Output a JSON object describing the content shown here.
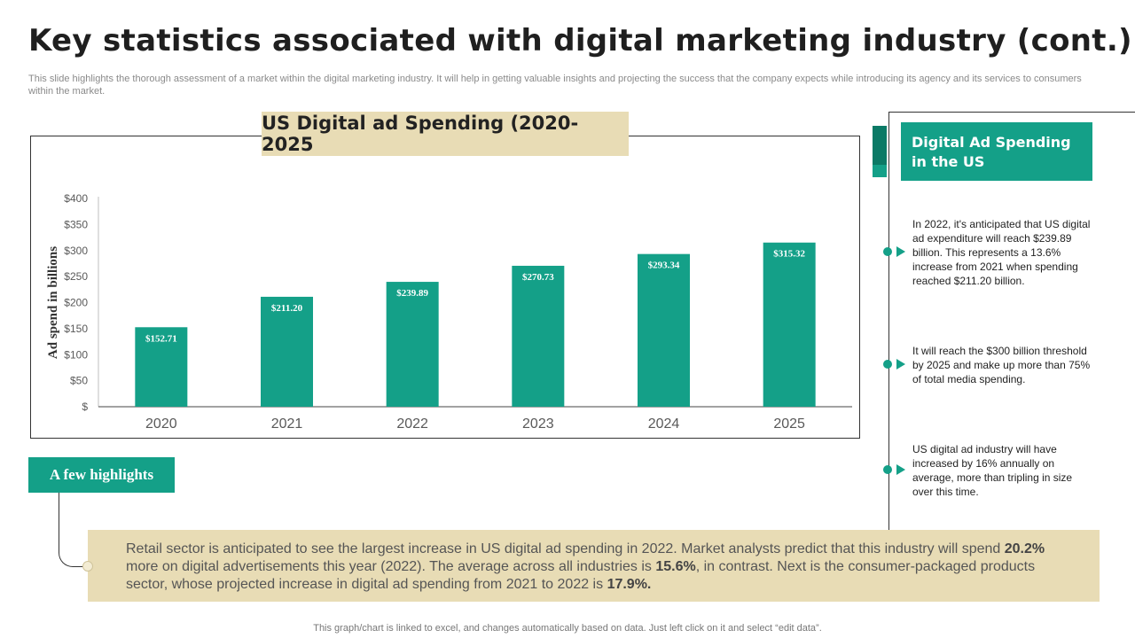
{
  "slide": {
    "title": "Key statistics associated with digital marketing industry (cont.)",
    "subtitle": "This slide highlights the thorough assessment of a market within the digital marketing industry. It will help in getting valuable insights and projecting the success that the company expects while introducing its agency and its services to consumers within the market.",
    "footer": "This graph/chart is linked to excel, and changes automatically based on data. Just left click on it and select “edit data”."
  },
  "chart_data": {
    "type": "bar",
    "title": "US Digital ad Spending (2020-2025",
    "categories": [
      "2020",
      "2021",
      "2022",
      "2023",
      "2024",
      "2025"
    ],
    "values": [
      152.71,
      211.2,
      239.89,
      270.73,
      293.34,
      315.32
    ],
    "data_labels": [
      "$152.71",
      "$211.20",
      "$239.89",
      "$270.73",
      "$293.34",
      "$315.32"
    ],
    "ylabel": "Ad spend in billions",
    "xlabel": "",
    "ylim": [
      0,
      400
    ],
    "yticks": [
      0,
      50,
      100,
      150,
      200,
      250,
      300,
      350,
      400
    ],
    "ytick_labels": [
      "$",
      "$50",
      "$100",
      "$150",
      "$200",
      "$250",
      "$300",
      "$350",
      "$400"
    ],
    "bar_color": "#14a088",
    "grid": false
  },
  "right_panel": {
    "header": "Digital Ad Spending in the US",
    "items": [
      {
        "text": "In 2022, it's anticipated that US digital ad expenditure will reach $239.89 billion. This represents a 13.6% increase from 2021 when spending reached $211.20 billion."
      },
      {
        "text": "It will reach the $300 billion threshold by 2025 and make up more than 75% of total media spending."
      },
      {
        "text": "US digital ad industry will have increased by 16% annually on average,  more than tripling in size over this time."
      }
    ]
  },
  "highlights": {
    "label": "A few highlights",
    "text_1": "Retail sector is anticipated to see the largest increase in US digital ad spending in 2022. Market analysts predict that this industry will spend ",
    "bold_1": "20.2%",
    "text_2": " more on digital advertisements this year (2022). The average across all industries is ",
    "bold_2": "15.6%",
    "text_3": ", in contrast. Next is the consumer-packaged products sector, whose projected increase in digital ad spending from 2021 to 2022 is ",
    "bold_3": "17.9%."
  },
  "colors": {
    "accent": "#14a088",
    "accent_dark": "#0b7a66",
    "beige": "#e8dcb5"
  }
}
